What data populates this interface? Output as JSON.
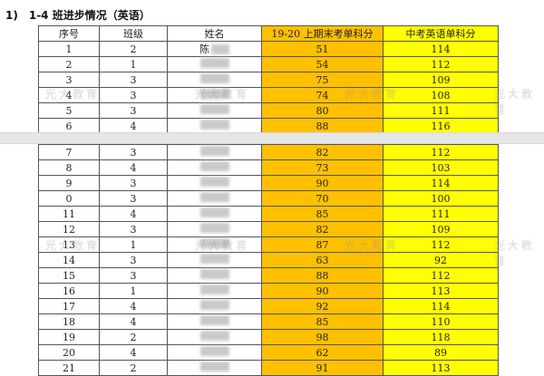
{
  "section": {
    "number": "1)",
    "title": "1-4 班进步情况（英语）"
  },
  "table": {
    "headers": [
      "序号",
      "班级",
      "姓名",
      "19-20 上期末考单科分",
      "中考英语单科分"
    ],
    "colors": {
      "term_score_bg": "#ffc000",
      "zhongkao_score_bg": "#ffff00"
    },
    "rows_page1": [
      {
        "no": "1",
        "class": "2",
        "name": "陈",
        "term": "51",
        "zk": "114"
      },
      {
        "no": "2",
        "class": "1",
        "name": "",
        "term": "54",
        "zk": "112"
      },
      {
        "no": "3",
        "class": "3",
        "name": "",
        "term": "75",
        "zk": "109"
      },
      {
        "no": "4",
        "class": "3",
        "name": "",
        "term": "74",
        "zk": "108"
      },
      {
        "no": "5",
        "class": "3",
        "name": "",
        "term": "80",
        "zk": "111"
      },
      {
        "no": "6",
        "class": "4",
        "name": "",
        "term": "88",
        "zk": "116"
      }
    ],
    "rows_page2": [
      {
        "no": "7",
        "class": "3",
        "name": "",
        "term": "82",
        "zk": "112"
      },
      {
        "no": "8",
        "class": "4",
        "name": "",
        "term": "73",
        "zk": "103"
      },
      {
        "no": "9",
        "class": "3",
        "name": "",
        "term": "90",
        "zk": "114"
      },
      {
        "no": "0",
        "class": "3",
        "name": "",
        "term": "70",
        "zk": "100"
      },
      {
        "no": "11",
        "class": "4",
        "name": "",
        "term": "85",
        "zk": "111"
      },
      {
        "no": "12",
        "class": "3",
        "name": "",
        "term": "82",
        "zk": "109"
      },
      {
        "no": "13",
        "class": "1",
        "name": "",
        "term": "87",
        "zk": "112"
      },
      {
        "no": "14",
        "class": "3",
        "name": "",
        "term": "63",
        "zk": "92"
      },
      {
        "no": "15",
        "class": "3",
        "name": "",
        "term": "88",
        "zk": "112"
      },
      {
        "no": "16",
        "class": "1",
        "name": "",
        "term": "90",
        "zk": "113"
      },
      {
        "no": "17",
        "class": "4",
        "name": "",
        "term": "92",
        "zk": "114"
      },
      {
        "no": "18",
        "class": "4",
        "name": "",
        "term": "85",
        "zk": "110"
      },
      {
        "no": "19",
        "class": "2",
        "name": "",
        "term": "98",
        "zk": "118"
      },
      {
        "no": "20",
        "class": "4",
        "name": "",
        "term": "62",
        "zk": "89"
      },
      {
        "no": "21",
        "class": "2",
        "name": "",
        "term": "91",
        "zk": "113"
      }
    ]
  },
  "watermark": "光大教育"
}
